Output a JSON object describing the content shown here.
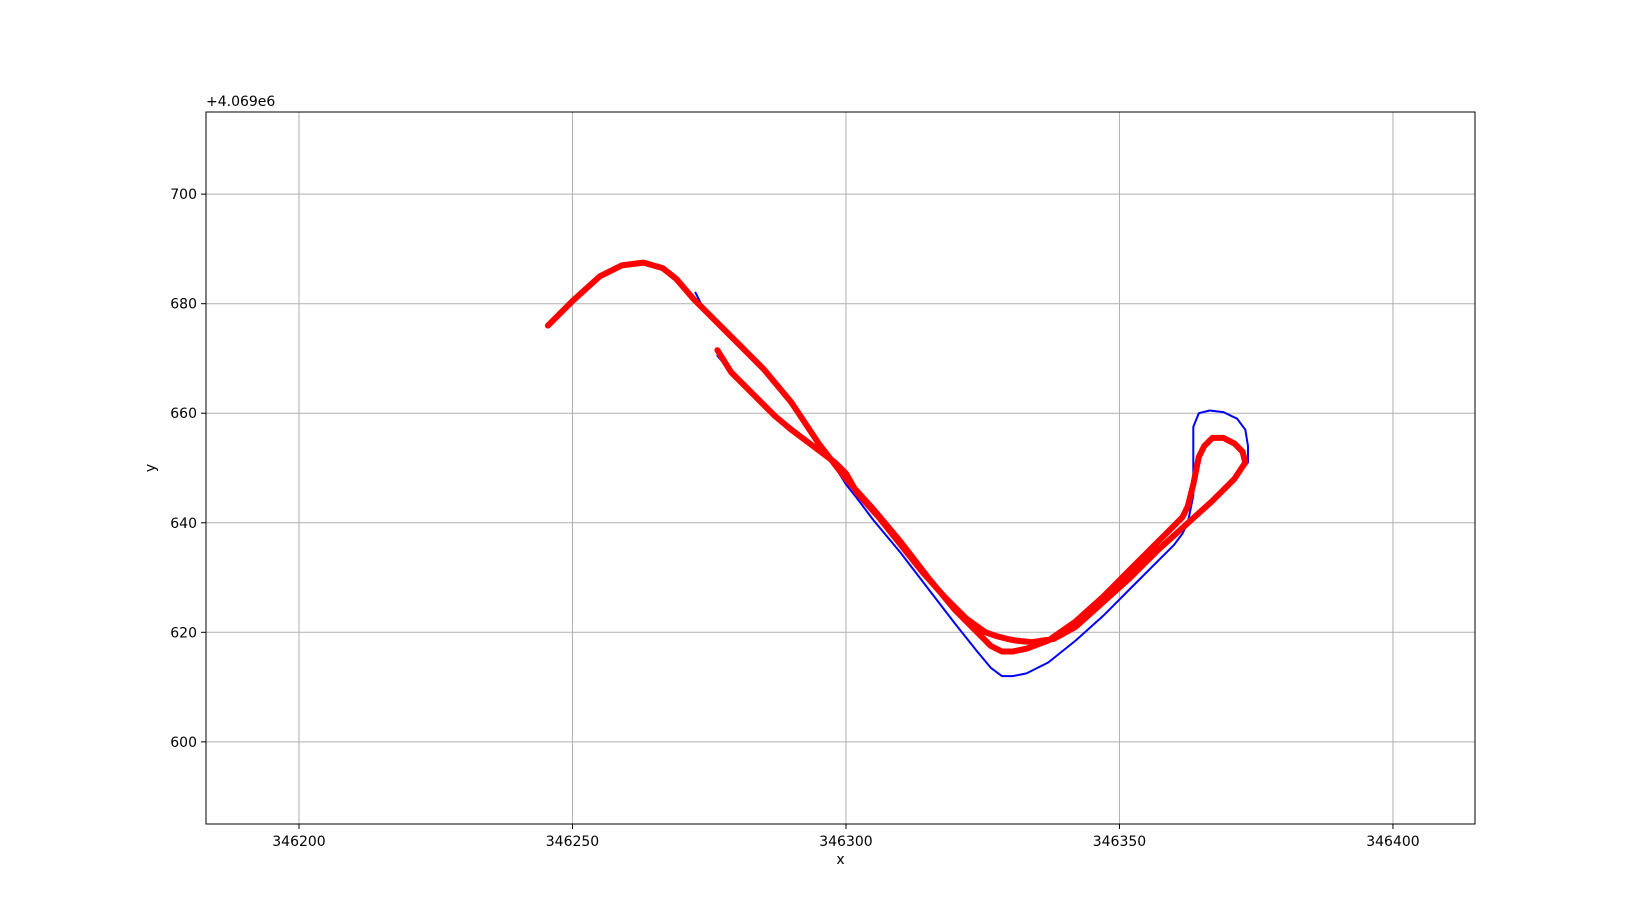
{
  "chart_data": {
    "type": "line",
    "title": "",
    "xlabel": "x",
    "ylabel": "y",
    "y_offset_label": "+4.069e6",
    "xlim": [
      346183,
      346415
    ],
    "ylim": [
      585,
      715
    ],
    "grid": true,
    "x_ticks": [
      346200,
      346250,
      346300,
      346350,
      346400
    ],
    "x_tick_labels": [
      "346200",
      "346250",
      "346300",
      "346350",
      "346400"
    ],
    "y_ticks": [
      600,
      620,
      640,
      660,
      680,
      700
    ],
    "y_tick_labels": [
      "600",
      "620",
      "640",
      "660",
      "680",
      "700"
    ],
    "series": [
      {
        "color": "#0000ff",
        "width": 2,
        "x": [
          346272.5,
          346274,
          346276,
          346280,
          346285,
          346290,
          346295,
          346300,
          346302,
          346305,
          346310,
          346315,
          346320,
          346324,
          346326.5,
          346328.5,
          346330.5,
          346333,
          346337,
          346342,
          346347,
          346352,
          346356,
          346358.5,
          346360,
          346361.5,
          346362.5,
          346363.5,
          346363.5,
          346363.5,
          346364.5,
          346366.5,
          346369,
          346371.5,
          346373,
          346373.5,
          346373.5,
          346371,
          346367,
          346362,
          346357,
          346352,
          346347,
          346342,
          346338,
          346334,
          346331,
          346329.5,
          346327.5,
          346325.5,
          346322,
          346318,
          346314,
          346310,
          346306,
          346302,
          346300,
          346298,
          346296,
          346294,
          346292,
          346290,
          346287,
          346283,
          346279,
          346276.5
        ],
        "y": [
          682,
          679,
          677,
          673,
          668,
          662.5,
          655,
          647,
          644.5,
          640.5,
          634.5,
          628,
          621.5,
          616.5,
          613.5,
          612,
          612,
          612.5,
          614.5,
          618.5,
          623,
          628,
          632,
          634.5,
          636,
          638,
          640,
          645,
          653.5,
          657.5,
          660,
          660.5,
          660.2,
          659,
          657,
          654,
          651,
          648,
          644,
          639.5,
          635,
          630,
          625.5,
          621,
          618.8,
          618.2,
          618.5,
          618.8,
          619.3,
          620,
          622.5,
          626.5,
          631,
          636,
          641,
          645.5,
          649,
          651,
          652.5,
          654,
          655.5,
          657,
          659.5,
          663.5,
          667.5,
          670.5
        ]
      },
      {
        "color": "#ff0000",
        "width": 6,
        "x": [
          346245.5,
          346250,
          346255,
          346259,
          346263,
          346266.5,
          346269,
          346272,
          346276,
          346280,
          346285,
          346290,
          346295,
          346300,
          346305,
          346310,
          346315,
          346320,
          346324,
          346326.5,
          346328.5,
          346330.5,
          346333,
          346337,
          346342,
          346347,
          346352,
          346356,
          346358.5,
          346360,
          346361.5,
          346362.5,
          346363.5,
          346364.5,
          346365.5,
          346367,
          346369,
          346371,
          346372.5,
          346373,
          346371,
          346367,
          346362,
          346357,
          346352,
          346347,
          346342,
          346338,
          346334,
          346331,
          346329.5,
          346327.5,
          346325.5,
          346322,
          346318,
          346314,
          346310,
          346306,
          346302,
          346300,
          346298,
          346296,
          346294,
          346292,
          346290,
          346287,
          346283,
          346279,
          346276.5
        ],
        "y": [
          676,
          680.5,
          685,
          687,
          687.5,
          686.5,
          684.5,
          681,
          677,
          673,
          668,
          662,
          654.5,
          648,
          642.5,
          636.5,
          630,
          624,
          620,
          617.5,
          616.5,
          616.5,
          617,
          618.5,
          622,
          626.5,
          631.5,
          635.5,
          638,
          639.5,
          641,
          643,
          647,
          652,
          654,
          655.5,
          655.5,
          654.5,
          653,
          651,
          648,
          644,
          639.5,
          635,
          630,
          625.5,
          621,
          618.8,
          618.2,
          618.5,
          618.8,
          619.3,
          620,
          622.5,
          626.5,
          631,
          636,
          641,
          645.5,
          649,
          651,
          652.5,
          654,
          655.5,
          657,
          659.5,
          663.5,
          667.5,
          671.5
        ]
      }
    ]
  }
}
